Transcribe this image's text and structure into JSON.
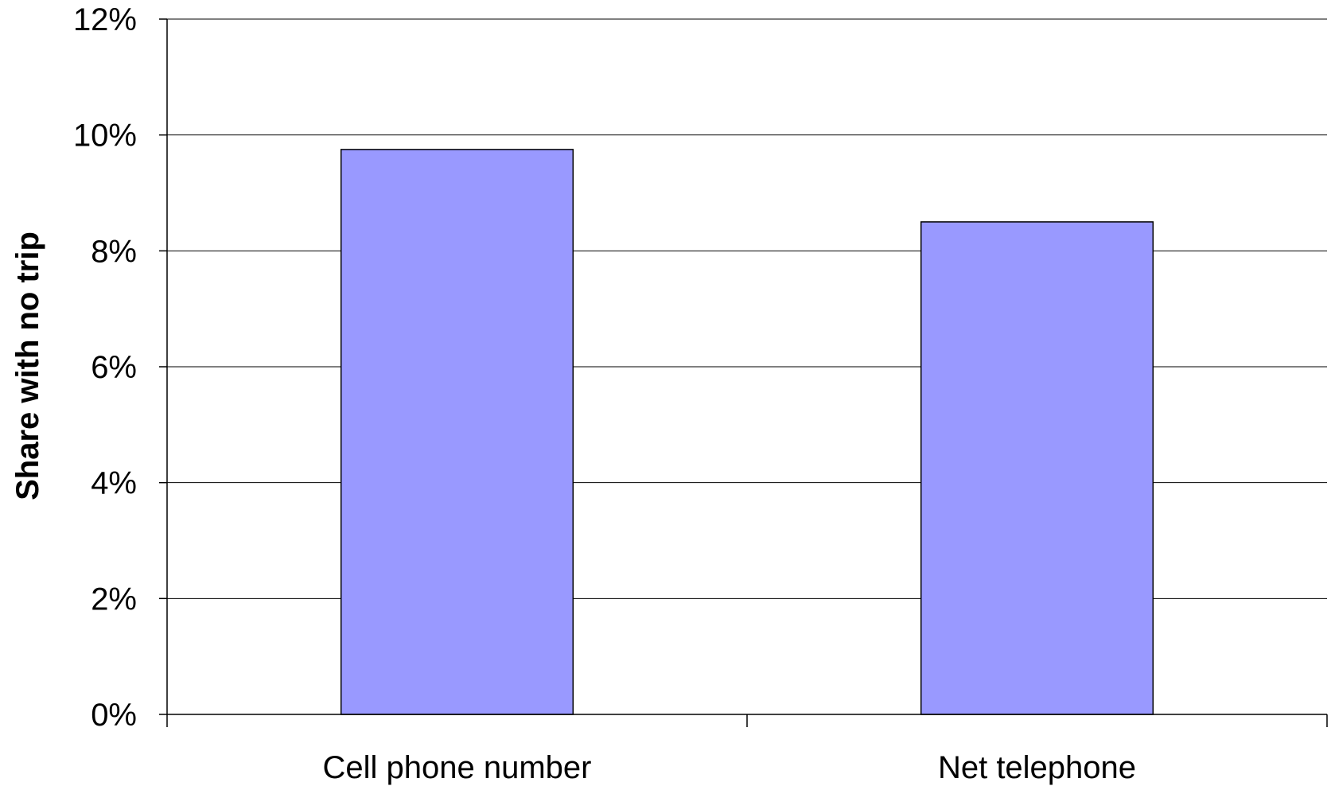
{
  "chart_data": {
    "type": "bar",
    "categories": [
      "Cell phone number",
      "Net telephone"
    ],
    "values": [
      9.75,
      8.5
    ],
    "ylabel": "Share with no trip",
    "ylim": [
      0,
      12
    ],
    "yticks": [
      "0%",
      "2%",
      "4%",
      "6%",
      "8%",
      "10%",
      "12%"
    ],
    "grid": true,
    "bar_color": "#9999ff"
  }
}
